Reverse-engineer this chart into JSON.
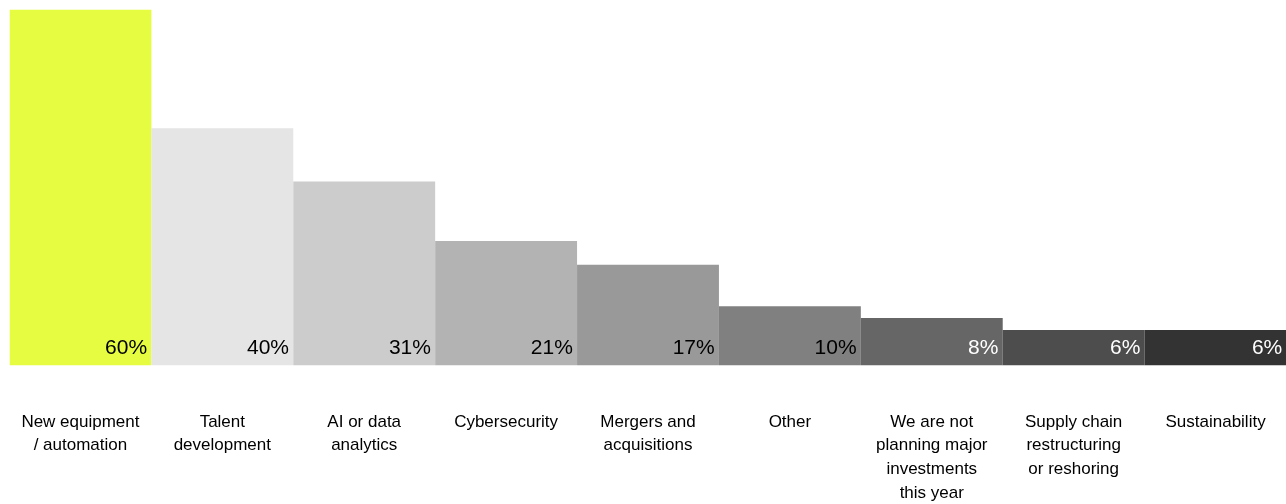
{
  "chart_data": {
    "type": "bar",
    "categories": [
      "New equipment / automation",
      "Talent development",
      "AI or data analytics",
      "Cybersecurity",
      "Mergers and acquisitions",
      "Other",
      "We are not planning major investments this year",
      "Supply chain restructuring or reshoring",
      "Sustainability"
    ],
    "values": [
      60,
      40,
      31,
      21,
      17,
      10,
      8,
      6,
      6
    ],
    "colors": [
      "#e6fc41",
      "#e5e5e5",
      "#cccccc",
      "#b3b3b3",
      "#999999",
      "#808080",
      "#666666",
      "#4d4d4d",
      "#333333"
    ],
    "value_labels": [
      "60%",
      "40%",
      "31%",
      "21%",
      "17%",
      "10%",
      "8%",
      "6%",
      "6%"
    ],
    "grid": false
  }
}
